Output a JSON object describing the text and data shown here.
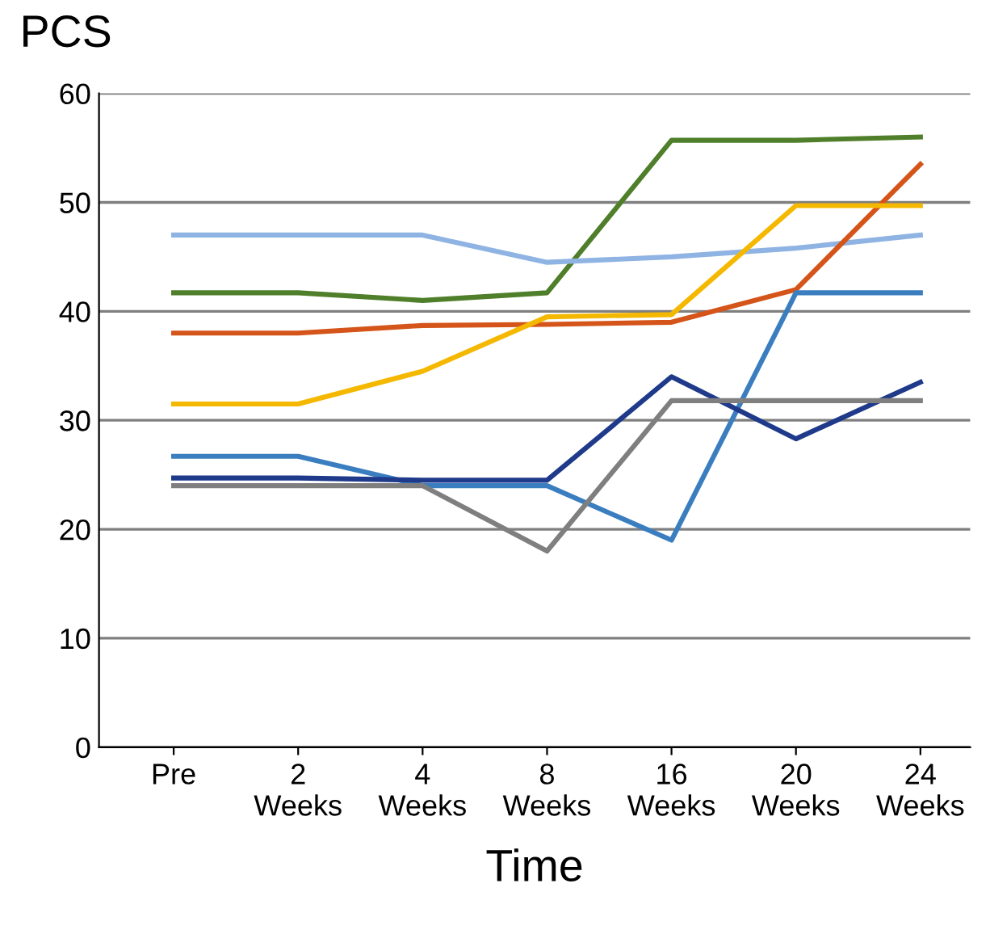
{
  "chart_data": {
    "type": "line",
    "ylabel": "PCS",
    "xlabel": "Time",
    "categories": [
      "Pre",
      "2\nWeeks",
      "4\nWeeks",
      "8\nWeeks",
      "16\nWeeks",
      "20\nWeeks",
      "24\nWeeks"
    ],
    "series": [
      {
        "color": "#4f7f2a",
        "values": [
          41.7,
          41.7,
          41,
          41.7,
          55.7,
          55.7,
          56
        ]
      },
      {
        "color": "#8fb4e3",
        "values": [
          47,
          47,
          47,
          44.5,
          45,
          45.8,
          47
        ]
      },
      {
        "color": "#d4541a",
        "values": [
          38,
          38,
          38.7,
          38.8,
          39,
          42,
          53.5
        ]
      },
      {
        "color": "#f5b800",
        "values": [
          31.5,
          31.5,
          34.5,
          39.5,
          39.7,
          49.7,
          49.7
        ]
      },
      {
        "color": "#3a7ec0",
        "values": [
          26.7,
          26.7,
          24,
          24,
          19,
          41.7,
          41.7
        ]
      },
      {
        "color": "#1f3a8a",
        "values": [
          24.7,
          24.7,
          24.5,
          24.5,
          34,
          28.3,
          33.5
        ]
      },
      {
        "color": "#7f7f7f",
        "values": [
          24,
          24,
          24,
          18,
          31.8,
          31.8,
          31.8
        ]
      }
    ],
    "ylim": [
      0,
      60
    ],
    "yticks": [
      0,
      10,
      20,
      30,
      40,
      50,
      60
    ],
    "grid": "y",
    "marker": "none",
    "line_style": "solid",
    "legend": false
  }
}
